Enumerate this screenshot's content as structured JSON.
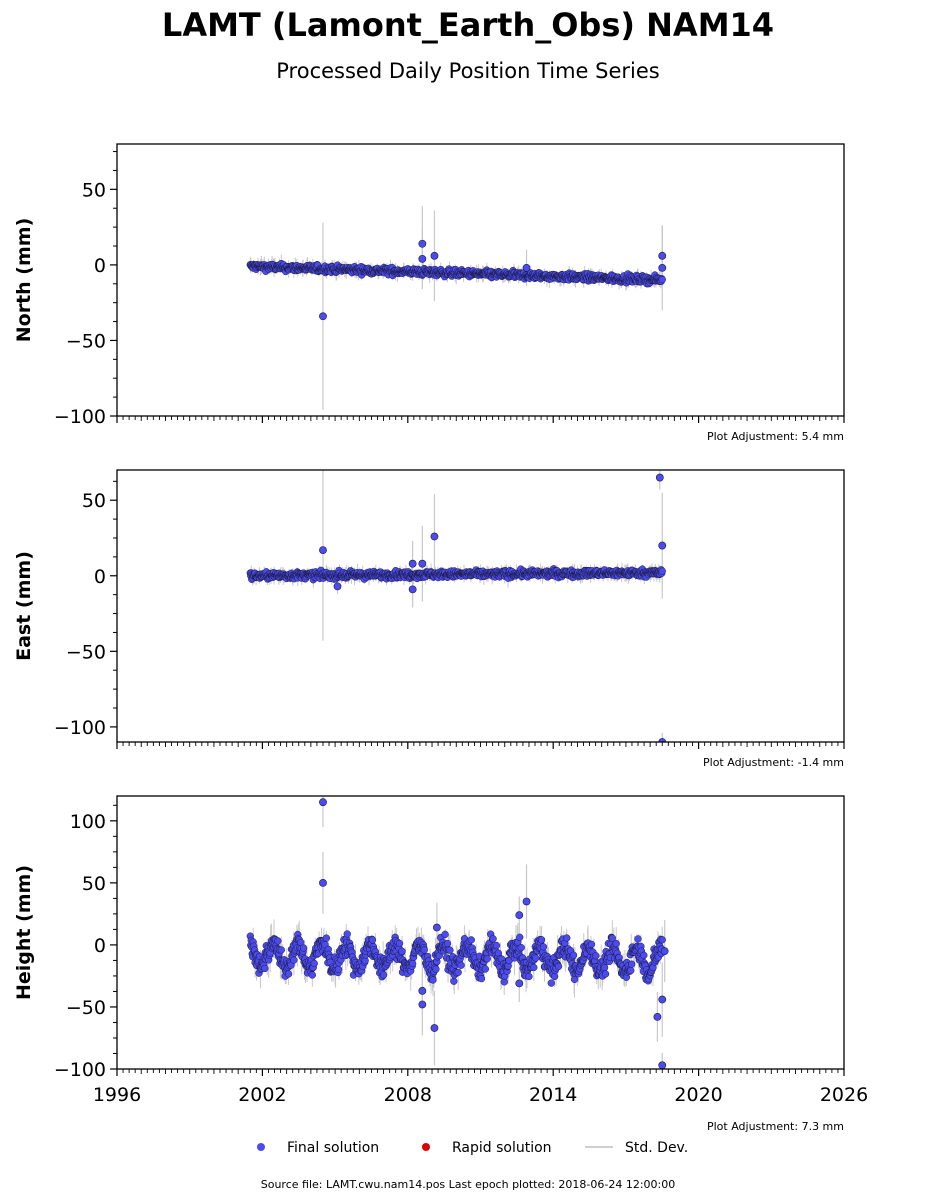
{
  "title": "LAMT (Lamont_Earth_Obs) NAM14",
  "subtitle": "Processed Daily Position Time Series",
  "footer": "Source file: LAMT.cwu.nam14.pos  Last epoch plotted: 2018-06-24 12:00:00",
  "legend": [
    {
      "label": "Final solution",
      "kind": "dot",
      "color": "#4b4bf0"
    },
    {
      "label": "Rapid solution",
      "kind": "dot",
      "color": "#dd0000"
    },
    {
      "label": "Std. Dev.",
      "kind": "line",
      "color": "#cfcfcf"
    }
  ],
  "colors": {
    "final": "#4b4bf0",
    "rapid": "#dd0000",
    "stddev": "#c8c8c8",
    "edge": "#1a1a3a"
  },
  "chart_data": [
    {
      "type": "scatter",
      "ylabel": "North (mm)",
      "adjustment": "Plot Adjustment: 5.4 mm",
      "xlim": [
        1996,
        2026
      ],
      "ylim": [
        -100,
        80
      ],
      "yticks": [
        -100,
        -50,
        0,
        50
      ],
      "xticks": [
        1996,
        2002,
        2008,
        2014,
        2020,
        2026
      ],
      "series_start": 2001.5,
      "series_end": 2018.5,
      "trend": [
        {
          "x": 2001.5,
          "y": -1
        },
        {
          "x": 2018.5,
          "y": -10
        }
      ],
      "outliers": [
        {
          "x": 2004.5,
          "y": -34,
          "err": 62
        },
        {
          "x": 2008.6,
          "y": 14,
          "err": 25
        },
        {
          "x": 2008.6,
          "y": 4,
          "err": 20
        },
        {
          "x": 2009.1,
          "y": 6,
          "err": 30
        },
        {
          "x": 2012.9,
          "y": -2,
          "err": 12
        },
        {
          "x": 2018.5,
          "y": 6,
          "err": 20
        },
        {
          "x": 2018.5,
          "y": -2,
          "err": 28
        }
      ]
    },
    {
      "type": "scatter",
      "ylabel": "East (mm)",
      "adjustment": "Plot Adjustment: -1.4 mm",
      "xlim": [
        1996,
        2026
      ],
      "ylim": [
        -110,
        70
      ],
      "yticks": [
        -100,
        -50,
        0,
        50
      ],
      "xticks": [
        1996,
        2002,
        2008,
        2014,
        2020,
        2026
      ],
      "series_start": 2001.5,
      "series_end": 2018.5,
      "trend": [
        {
          "x": 2001.5,
          "y": 0
        },
        {
          "x": 2018.5,
          "y": 2
        }
      ],
      "outliers": [
        {
          "x": 2004.5,
          "y": 17,
          "err": 60
        },
        {
          "x": 2005.1,
          "y": -7,
          "err": 5
        },
        {
          "x": 2008.2,
          "y": 8,
          "err": 15
        },
        {
          "x": 2008.2,
          "y": -9,
          "err": 12
        },
        {
          "x": 2008.6,
          "y": 8,
          "err": 25
        },
        {
          "x": 2009.1,
          "y": 26,
          "err": 28
        },
        {
          "x": 2018.4,
          "y": 65,
          "err": 8
        },
        {
          "x": 2018.5,
          "y": 20,
          "err": 35
        },
        {
          "x": 2018.5,
          "y": -110,
          "err": 6
        }
      ]
    },
    {
      "type": "scatter",
      "ylabel": "Height (mm)",
      "adjustment": "Plot Adjustment: 7.3 mm",
      "xlim": [
        1996,
        2026
      ],
      "ylim": [
        -100,
        120
      ],
      "yticks": [
        -100,
        -50,
        0,
        50,
        100
      ],
      "xticks": [
        1996,
        2002,
        2008,
        2014,
        2020,
        2026
      ],
      "series_start": 2001.5,
      "series_end": 2018.5,
      "trend": [
        {
          "x": 2001.5,
          "y": -8
        },
        {
          "x": 2018.5,
          "y": -12
        }
      ],
      "seasonal_amplitude_mm": 10,
      "outliers": [
        {
          "x": 2004.5,
          "y": 115,
          "err": 20
        },
        {
          "x": 2004.5,
          "y": 50,
          "err": 25
        },
        {
          "x": 2008.6,
          "y": -37,
          "err": 20
        },
        {
          "x": 2008.6,
          "y": -48,
          "err": 25
        },
        {
          "x": 2009.1,
          "y": -67,
          "err": 30
        },
        {
          "x": 2009.2,
          "y": 14,
          "err": 20
        },
        {
          "x": 2012.6,
          "y": 24,
          "err": 15
        },
        {
          "x": 2012.6,
          "y": -31,
          "err": 15
        },
        {
          "x": 2012.9,
          "y": 35,
          "err": 30
        },
        {
          "x": 2018.3,
          "y": -58,
          "err": 20
        },
        {
          "x": 2018.5,
          "y": -44,
          "err": 30
        },
        {
          "x": 2018.5,
          "y": -97,
          "err": 10
        },
        {
          "x": 2018.6,
          "y": -5,
          "err": 25
        }
      ]
    }
  ]
}
